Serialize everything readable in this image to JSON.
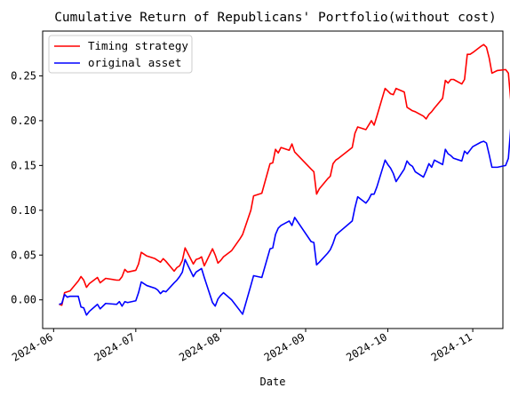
{
  "chart_data": {
    "type": "line",
    "title": "Cumulative Return of Republicans' Portfolio(without cost)",
    "xlabel": "Date",
    "ylabel": "",
    "x_ticks": [
      "2024-06",
      "2024-07",
      "2024-08",
      "2024-09",
      "2024-10",
      "2024-11"
    ],
    "y_ticks": [
      0.0,
      0.05,
      0.1,
      0.15,
      0.2,
      0.25
    ],
    "y_tick_labels": [
      "0.00",
      "0.05",
      "0.10",
      "0.15",
      "0.20",
      "0.25"
    ],
    "xlim": [
      "2024-05-28",
      "2024-11-12"
    ],
    "ylim": [
      -0.032,
      0.3
    ],
    "grid": false,
    "legend_position": "top-left",
    "series": [
      {
        "name": "Timing strategy",
        "color": "#ff0000",
        "points": [
          [
            "2024-06-03",
            -0.005
          ],
          [
            "2024-06-04",
            -0.006
          ],
          [
            "2024-06-05",
            0.008
          ],
          [
            "2024-06-06",
            0.009
          ],
          [
            "2024-06-07",
            0.01
          ],
          [
            "2024-06-10",
            0.021
          ],
          [
            "2024-06-11",
            0.026
          ],
          [
            "2024-06-12",
            0.022
          ],
          [
            "2024-06-13",
            0.014
          ],
          [
            "2024-06-14",
            0.018
          ],
          [
            "2024-06-17",
            0.025
          ],
          [
            "2024-06-18",
            0.019
          ],
          [
            "2024-06-20",
            0.024
          ],
          [
            "2024-06-24",
            0.022
          ],
          [
            "2024-06-25",
            0.022
          ],
          [
            "2024-06-26",
            0.026
          ],
          [
            "2024-06-27",
            0.034
          ],
          [
            "2024-06-28",
            0.031
          ],
          [
            "2024-07-01",
            0.033
          ],
          [
            "2024-07-02",
            0.04
          ],
          [
            "2024-07-03",
            0.053
          ],
          [
            "2024-07-05",
            0.049
          ],
          [
            "2024-07-08",
            0.046
          ],
          [
            "2024-07-09",
            0.044
          ],
          [
            "2024-07-10",
            0.042
          ],
          [
            "2024-07-11",
            0.046
          ],
          [
            "2024-07-12",
            0.043
          ],
          [
            "2024-07-15",
            0.032
          ],
          [
            "2024-07-16",
            0.036
          ],
          [
            "2024-07-17",
            0.038
          ],
          [
            "2024-07-18",
            0.044
          ],
          [
            "2024-07-19",
            0.058
          ],
          [
            "2024-07-22",
            0.04
          ],
          [
            "2024-07-23",
            0.045
          ],
          [
            "2024-07-24",
            0.046
          ],
          [
            "2024-07-25",
            0.048
          ],
          [
            "2024-07-26",
            0.038
          ],
          [
            "2024-07-29",
            0.057
          ],
          [
            "2024-07-30",
            0.05
          ],
          [
            "2024-07-31",
            0.041
          ],
          [
            "2024-08-01",
            0.044
          ],
          [
            "2024-08-02",
            0.048
          ],
          [
            "2024-08-05",
            0.055
          ],
          [
            "2024-08-08",
            0.068
          ],
          [
            "2024-08-09",
            0.073
          ],
          [
            "2024-08-12",
            0.1
          ],
          [
            "2024-08-13",
            0.116
          ],
          [
            "2024-08-16",
            0.119
          ],
          [
            "2024-08-19",
            0.152
          ],
          [
            "2024-08-20",
            0.153
          ],
          [
            "2024-08-21",
            0.168
          ],
          [
            "2024-08-22",
            0.164
          ],
          [
            "2024-08-23",
            0.17
          ],
          [
            "2024-08-26",
            0.167
          ],
          [
            "2024-08-27",
            0.174
          ],
          [
            "2024-08-28",
            0.165
          ],
          [
            "2024-09-03",
            0.146
          ],
          [
            "2024-09-04",
            0.143
          ],
          [
            "2024-09-05",
            0.118
          ],
          [
            "2024-09-06",
            0.124
          ],
          [
            "2024-09-09",
            0.135
          ],
          [
            "2024-09-10",
            0.138
          ],
          [
            "2024-09-11",
            0.152
          ],
          [
            "2024-09-12",
            0.156
          ],
          [
            "2024-09-13",
            0.158
          ],
          [
            "2024-09-18",
            0.17
          ],
          [
            "2024-09-19",
            0.186
          ],
          [
            "2024-09-20",
            0.193
          ],
          [
            "2024-09-23",
            0.19
          ],
          [
            "2024-09-24",
            0.195
          ],
          [
            "2024-09-25",
            0.2
          ],
          [
            "2024-09-26",
            0.195
          ],
          [
            "2024-09-27",
            0.205
          ],
          [
            "2024-09-30",
            0.236
          ],
          [
            "2024-10-01",
            0.233
          ],
          [
            "2024-10-02",
            0.23
          ],
          [
            "2024-10-03",
            0.229
          ],
          [
            "2024-10-04",
            0.236
          ],
          [
            "2024-10-07",
            0.232
          ],
          [
            "2024-10-08",
            0.215
          ],
          [
            "2024-10-09",
            0.213
          ],
          [
            "2024-10-10",
            0.211
          ],
          [
            "2024-10-11",
            0.21
          ],
          [
            "2024-10-14",
            0.205
          ],
          [
            "2024-10-15",
            0.202
          ],
          [
            "2024-10-16",
            0.207
          ],
          [
            "2024-10-17",
            0.21
          ],
          [
            "2024-10-18",
            0.214
          ],
          [
            "2024-10-21",
            0.225
          ],
          [
            "2024-10-22",
            0.245
          ],
          [
            "2024-10-23",
            0.242
          ],
          [
            "2024-10-24",
            0.246
          ],
          [
            "2024-10-25",
            0.246
          ],
          [
            "2024-10-28",
            0.241
          ],
          [
            "2024-10-29",
            0.246
          ],
          [
            "2024-10-30",
            0.274
          ],
          [
            "2024-10-31",
            0.274
          ],
          [
            "2024-11-01",
            0.276
          ],
          [
            "2024-11-04",
            0.283
          ],
          [
            "2024-11-05",
            0.285
          ],
          [
            "2024-11-06",
            0.282
          ],
          [
            "2024-11-07",
            0.27
          ],
          [
            "2024-11-08",
            0.253
          ],
          [
            "2024-11-10",
            0.256
          ],
          [
            "2024-11-13",
            0.257
          ],
          [
            "2024-11-14",
            0.253
          ],
          [
            "2024-11-15",
            0.218
          ],
          [
            "2024-11-16",
            0.193
          ],
          [
            "2024-11-17",
            0.195
          ],
          [
            "2024-11-18",
            0.21
          ]
        ]
      },
      {
        "name": "original asset",
        "color": "#0000ff",
        "points": [
          [
            "2024-06-03",
            -0.005
          ],
          [
            "2024-06-04",
            -0.004
          ],
          [
            "2024-06-05",
            0.006
          ],
          [
            "2024-06-06",
            0.003
          ],
          [
            "2024-06-07",
            0.004
          ],
          [
            "2024-06-10",
            0.004
          ],
          [
            "2024-06-11",
            -0.008
          ],
          [
            "2024-06-12",
            -0.009
          ],
          [
            "2024-06-13",
            -0.017
          ],
          [
            "2024-06-14",
            -0.013
          ],
          [
            "2024-06-17",
            -0.005
          ],
          [
            "2024-06-18",
            -0.01
          ],
          [
            "2024-06-20",
            -0.004
          ],
          [
            "2024-06-24",
            -0.005
          ],
          [
            "2024-06-25",
            -0.002
          ],
          [
            "2024-06-26",
            -0.007
          ],
          [
            "2024-06-27",
            -0.002
          ],
          [
            "2024-06-28",
            -0.003
          ],
          [
            "2024-07-01",
            -0.001
          ],
          [
            "2024-07-02",
            0.008
          ],
          [
            "2024-07-03",
            0.02
          ],
          [
            "2024-07-05",
            0.016
          ],
          [
            "2024-07-08",
            0.013
          ],
          [
            "2024-07-09",
            0.011
          ],
          [
            "2024-07-10",
            0.007
          ],
          [
            "2024-07-11",
            0.01
          ],
          [
            "2024-07-12",
            0.009
          ],
          [
            "2024-07-15",
            0.019
          ],
          [
            "2024-07-16",
            0.022
          ],
          [
            "2024-07-17",
            0.026
          ],
          [
            "2024-07-18",
            0.031
          ],
          [
            "2024-07-19",
            0.045
          ],
          [
            "2024-07-22",
            0.026
          ],
          [
            "2024-07-23",
            0.031
          ],
          [
            "2024-07-24",
            0.033
          ],
          [
            "2024-07-25",
            0.035
          ],
          [
            "2024-07-26",
            0.025
          ],
          [
            "2024-07-29",
            -0.003
          ],
          [
            "2024-07-30",
            -0.007
          ],
          [
            "2024-07-31",
            0.001
          ],
          [
            "2024-08-01",
            0.005
          ],
          [
            "2024-08-02",
            0.008
          ],
          [
            "2024-08-05",
            0.0
          ],
          [
            "2024-08-08",
            -0.012
          ],
          [
            "2024-08-09",
            -0.016
          ],
          [
            "2024-08-12",
            0.016
          ],
          [
            "2024-08-13",
            0.027
          ],
          [
            "2024-08-16",
            0.025
          ],
          [
            "2024-08-19",
            0.057
          ],
          [
            "2024-08-20",
            0.058
          ],
          [
            "2024-08-21",
            0.073
          ],
          [
            "2024-08-22",
            0.08
          ],
          [
            "2024-08-23",
            0.083
          ],
          [
            "2024-08-26",
            0.088
          ],
          [
            "2024-08-27",
            0.083
          ],
          [
            "2024-08-28",
            0.092
          ],
          [
            "2024-09-03",
            0.065
          ],
          [
            "2024-09-04",
            0.064
          ],
          [
            "2024-09-05",
            0.039
          ],
          [
            "2024-09-06",
            0.042
          ],
          [
            "2024-09-09",
            0.052
          ],
          [
            "2024-09-10",
            0.056
          ],
          [
            "2024-09-11",
            0.063
          ],
          [
            "2024-09-12",
            0.072
          ],
          [
            "2024-09-13",
            0.075
          ],
          [
            "2024-09-18",
            0.088
          ],
          [
            "2024-09-19",
            0.103
          ],
          [
            "2024-09-20",
            0.115
          ],
          [
            "2024-09-23",
            0.108
          ],
          [
            "2024-09-24",
            0.112
          ],
          [
            "2024-09-25",
            0.118
          ],
          [
            "2024-09-26",
            0.118
          ],
          [
            "2024-09-27",
            0.126
          ],
          [
            "2024-09-30",
            0.156
          ],
          [
            "2024-10-01",
            0.151
          ],
          [
            "2024-10-02",
            0.147
          ],
          [
            "2024-10-03",
            0.141
          ],
          [
            "2024-10-04",
            0.132
          ],
          [
            "2024-10-07",
            0.146
          ],
          [
            "2024-10-08",
            0.155
          ],
          [
            "2024-10-09",
            0.151
          ],
          [
            "2024-10-10",
            0.149
          ],
          [
            "2024-10-11",
            0.143
          ],
          [
            "2024-10-14",
            0.137
          ],
          [
            "2024-10-15",
            0.144
          ],
          [
            "2024-10-16",
            0.152
          ],
          [
            "2024-10-17",
            0.148
          ],
          [
            "2024-10-18",
            0.156
          ],
          [
            "2024-10-21",
            0.151
          ],
          [
            "2024-10-22",
            0.168
          ],
          [
            "2024-10-23",
            0.163
          ],
          [
            "2024-10-24",
            0.161
          ],
          [
            "2024-10-25",
            0.158
          ],
          [
            "2024-10-28",
            0.155
          ],
          [
            "2024-10-29",
            0.166
          ],
          [
            "2024-10-30",
            0.163
          ],
          [
            "2024-10-31",
            0.167
          ],
          [
            "2024-11-01",
            0.171
          ],
          [
            "2024-11-04",
            0.176
          ],
          [
            "2024-11-05",
            0.177
          ],
          [
            "2024-11-06",
            0.175
          ],
          [
            "2024-11-07",
            0.162
          ],
          [
            "2024-11-08",
            0.148
          ],
          [
            "2024-11-10",
            0.148
          ],
          [
            "2024-11-13",
            0.15
          ],
          [
            "2024-11-14",
            0.158
          ],
          [
            "2024-11-15",
            0.197
          ],
          [
            "2024-11-16",
            0.216
          ],
          [
            "2024-11-17",
            0.218
          ],
          [
            "2024-11-18",
            0.233
          ]
        ]
      }
    ]
  }
}
